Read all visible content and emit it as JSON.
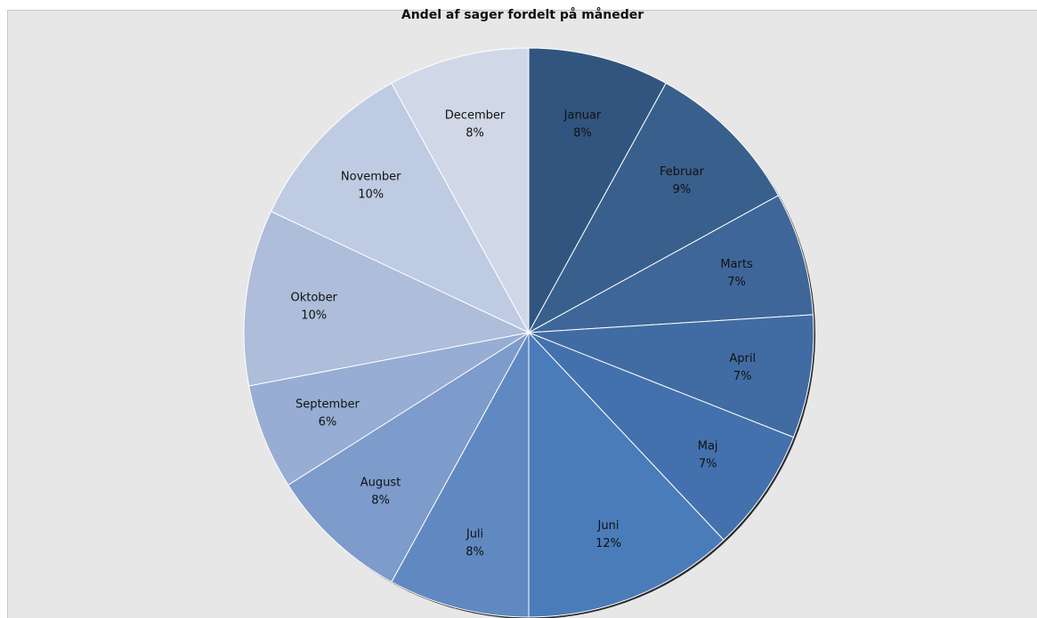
{
  "chart_data": {
    "type": "pie",
    "title": "Andel af sager fordelt på måneder",
    "categories": [
      "Januar",
      "Februar",
      "Marts",
      "April",
      "Maj",
      "Juni",
      "Juli",
      "August",
      "September",
      "Oktober",
      "November",
      "December"
    ],
    "values": [
      8,
      9,
      7,
      7,
      7,
      12,
      8,
      8,
      6,
      10,
      10,
      8
    ],
    "value_labels": [
      "8%",
      "9%",
      "7%",
      "7%",
      "7%",
      "12%",
      "8%",
      "8%",
      "6%",
      "10%",
      "10%",
      "8%"
    ],
    "colors": [
      "#31557f",
      "#395f8c",
      "#3e6699",
      "#416ca3",
      "#4371ad",
      "#4a7cba",
      "#6189c1",
      "#7d9bcb",
      "#97add3",
      "#adbdda",
      "#bfcbe2",
      "#d0d8e8"
    ],
    "start_angle_deg": 0,
    "direction": "clockwise",
    "legend": "none",
    "data_labels": "inside"
  }
}
